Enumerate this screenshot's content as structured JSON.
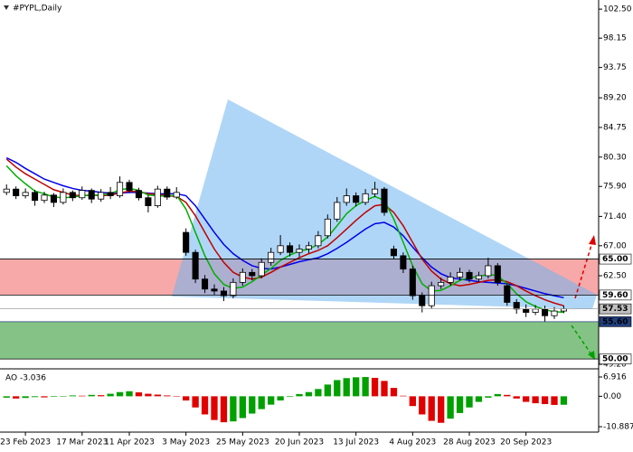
{
  "chart_data": [
    {
      "type": "candlestick",
      "title": "#PYPL,Daily",
      "categories": [
        null,
        null,
        "23 Feb 2023",
        null,
        null,
        null,
        null,
        null,
        "17 Mar 2023",
        null,
        null,
        null,
        null,
        "11 Apr 2023",
        null,
        null,
        null,
        null,
        null,
        "3 May 2023",
        null,
        null,
        null,
        null,
        null,
        "25 May 2023",
        null,
        null,
        null,
        null,
        null,
        "20 Jun 2023",
        null,
        null,
        null,
        null,
        null,
        "13 Jul 2023",
        null,
        null,
        null,
        null,
        null,
        "4 Aug 2023",
        null,
        null,
        null,
        null,
        null,
        "28 Aug 2023",
        null,
        null,
        null,
        null,
        null,
        "20 Sep 2023",
        null,
        null,
        null,
        null
      ],
      "open": [
        75.0,
        75.5,
        74.5,
        75.0,
        73.8,
        74.6,
        73.5,
        75.0,
        74.2,
        75.3,
        74.0,
        75.0,
        74.5,
        76.5,
        75.3,
        74.2,
        73.0,
        75.5,
        74.3,
        69.0,
        66.0,
        62.0,
        60.5,
        60.2,
        59.5,
        61.5,
        63.0,
        62.5,
        64.5,
        66.0,
        67.0,
        66.0,
        66.5,
        67.0,
        68.5,
        71.0,
        73.5,
        74.5,
        73.5,
        74.8,
        75.5,
        66.5,
        65.5,
        63.5,
        59.5,
        58.0,
        61.0,
        61.5,
        62.3,
        63.0,
        62.0,
        62.5,
        64.0,
        61.0,
        58.5,
        57.5,
        57.0,
        57.5,
        56.5,
        57.2
      ],
      "high": [
        76.2,
        75.9,
        75.6,
        75.4,
        75.1,
        74.9,
        75.6,
        75.3,
        75.9,
        75.6,
        75.5,
        75.8,
        77.4,
        76.9,
        75.7,
        74.6,
        76.0,
        75.9,
        75.8,
        69.6,
        66.4,
        62.6,
        61.2,
        60.8,
        62.1,
        63.6,
        63.5,
        65.1,
        66.7,
        68.6,
        67.5,
        67.2,
        67.6,
        69.2,
        71.7,
        74.3,
        75.6,
        75.0,
        75.5,
        76.6,
        75.8,
        67.0,
        66.0,
        64.0,
        60.0,
        61.6,
        62.2,
        63.0,
        63.7,
        63.4,
        63.1,
        65.2,
        64.4,
        61.4,
        59.0,
        58.2,
        58.1,
        58.0,
        57.8,
        58.0
      ],
      "low": [
        74.6,
        74.0,
        74.1,
        73.0,
        73.4,
        72.8,
        73.2,
        73.7,
        73.9,
        73.4,
        73.6,
        74.0,
        74.2,
        74.9,
        73.8,
        72.0,
        72.7,
        73.9,
        74.0,
        65.5,
        61.4,
        59.9,
        59.6,
        58.7,
        59.1,
        61.0,
        61.8,
        62.1,
        64.0,
        65.6,
        65.4,
        65.3,
        65.9,
        66.6,
        68.1,
        70.6,
        73.0,
        72.9,
        73.1,
        74.3,
        71.5,
        65.0,
        62.9,
        58.9,
        57.0,
        57.6,
        60.5,
        61.0,
        61.8,
        61.5,
        61.6,
        62.1,
        61.0,
        58.0,
        56.8,
        56.3,
        56.6,
        55.6,
        56.0,
        56.9
      ],
      "close": [
        75.5,
        74.5,
        75.0,
        73.8,
        74.6,
        73.5,
        75.0,
        74.2,
        75.3,
        74.0,
        75.0,
        74.5,
        76.5,
        75.3,
        74.2,
        73.0,
        75.5,
        74.3,
        75.0,
        66.0,
        62.0,
        60.5,
        60.2,
        59.5,
        61.5,
        63.0,
        62.5,
        64.5,
        66.0,
        67.0,
        66.0,
        66.5,
        67.0,
        68.5,
        71.0,
        73.5,
        74.5,
        73.5,
        74.8,
        75.5,
        72.0,
        65.5,
        63.5,
        59.5,
        58.0,
        61.0,
        61.5,
        62.3,
        63.0,
        62.0,
        62.5,
        64.0,
        61.5,
        58.5,
        57.5,
        57.0,
        57.5,
        56.5,
        57.2,
        57.53
      ],
      "up_color": "#ffffff",
      "down_color": "#000000",
      "lines": [
        {
          "color": "#0000ee",
          "values": [
            80.2,
            79.5,
            78.6,
            77.8,
            77.0,
            76.5,
            76.0,
            75.6,
            75.3,
            75.2,
            75.0,
            74.9,
            74.9,
            75.0,
            75.0,
            74.9,
            74.8,
            74.8,
            74.8,
            74.5,
            73.0,
            71.0,
            69.0,
            67.2,
            65.8,
            64.8,
            64.0,
            63.6,
            63.5,
            63.8,
            64.2,
            64.6,
            64.9,
            65.2,
            65.8,
            66.6,
            67.5,
            68.5,
            69.5,
            70.3,
            70.5,
            69.8,
            68.5,
            66.8,
            65.2,
            63.8,
            62.8,
            62.2,
            62.0,
            61.8,
            61.6,
            61.5,
            61.4,
            61.3,
            61.0,
            60.6,
            60.2,
            59.8,
            59.5,
            59.2
          ]
        },
        {
          "color": "#c00000",
          "values": [
            80.0,
            78.8,
            77.8,
            77.0,
            76.2,
            75.4,
            75.0,
            74.6,
            74.5,
            74.6,
            74.5,
            74.6,
            74.9,
            75.2,
            75.1,
            74.8,
            74.7,
            74.5,
            74.4,
            73.5,
            71.5,
            69.0,
            66.5,
            64.5,
            63.0,
            62.3,
            62.0,
            62.3,
            63.0,
            63.8,
            64.5,
            65.2,
            65.8,
            66.3,
            67.0,
            68.2,
            69.5,
            70.8,
            72.0,
            73.0,
            73.2,
            72.0,
            70.0,
            67.5,
            65.0,
            63.2,
            62.0,
            61.3,
            61.0,
            61.2,
            61.5,
            61.8,
            61.9,
            61.6,
            61.0,
            60.2,
            59.5,
            58.9,
            58.4,
            58.0
          ]
        },
        {
          "color": "#00b000",
          "values": [
            79.0,
            77.5,
            76.3,
            75.2,
            74.8,
            74.3,
            74.2,
            74.3,
            74.5,
            74.6,
            74.6,
            74.8,
            75.4,
            75.6,
            75.3,
            74.6,
            74.5,
            74.4,
            74.6,
            72.5,
            69.0,
            65.5,
            62.8,
            61.2,
            60.6,
            60.8,
            61.6,
            62.6,
            63.6,
            64.8,
            65.6,
            66.2,
            66.5,
            67.2,
            68.3,
            70.0,
            71.8,
            73.0,
            73.8,
            74.4,
            73.8,
            71.0,
            67.5,
            64.0,
            61.3,
            60.2,
            60.3,
            61.0,
            61.8,
            62.2,
            62.4,
            62.7,
            62.5,
            61.3,
            59.8,
            58.6,
            57.9,
            57.4,
            57.1,
            57.0
          ]
        }
      ],
      "ylim": [
        48.8,
        103.6
      ],
      "yticks": [
        {
          "value": 102.5,
          "label": "102.50"
        },
        {
          "value": 98.15,
          "label": "98.15"
        },
        {
          "value": 93.75,
          "label": "93.75"
        },
        {
          "value": 89.2,
          "label": "89.20"
        },
        {
          "value": 84.75,
          "label": "84.75"
        },
        {
          "value": 80.3,
          "label": "80.30"
        },
        {
          "value": 75.9,
          "label": "75.90"
        },
        {
          "value": 71.4,
          "label": "71.40"
        },
        {
          "value": 67,
          "label": "67.00"
        },
        {
          "value": 62.5,
          "label": "62.50"
        },
        {
          "value": 49.2,
          "label": "49.20"
        }
      ],
      "zones": [
        {
          "from": 59.6,
          "to": 65,
          "color": "#f7a8a8"
        },
        {
          "from": 50,
          "to": 55.6,
          "color": "#85c285"
        }
      ],
      "levels": [
        {
          "value": 65,
          "label": "65.00",
          "color": "#000000",
          "tag_fill": "#ffffff",
          "tag_text": "#000000"
        },
        {
          "value": 59.6,
          "label": "59.60",
          "color": "#000000",
          "tag_fill": "#ffffff",
          "tag_text": "#000000"
        },
        {
          "value": 57.53,
          "label": "57.53",
          "color": "#a0a0a0",
          "tag_fill": "#c0c0c0",
          "tag_text": "#000000"
        },
        {
          "value": 55.6,
          "label": "55.60",
          "color": "#1f3f7f",
          "tag_fill": "#1f3f7f",
          "tag_text": "#ffffff"
        },
        {
          "value": 50,
          "label": "50.00",
          "color": "#000000",
          "tag_fill": "#ffffff",
          "tag_text": "#000000"
        }
      ]
    },
    {
      "type": "histogram-oscillator",
      "title": "AO -3.036",
      "values": [
        -0.5,
        -0.8,
        -0.6,
        -0.3,
        -0.4,
        -0.2,
        0.1,
        0.3,
        0.2,
        0.5,
        0.4,
        0.9,
        1.5,
        1.8,
        1.4,
        0.9,
        0.6,
        0.3,
        0.1,
        -1.5,
        -4.0,
        -6.5,
        -8.5,
        -9.3,
        -9.0,
        -7.8,
        -6.2,
        -4.6,
        -3.0,
        -1.5,
        -0.2,
        0.8,
        1.5,
        2.6,
        4.2,
        5.8,
        6.5,
        6.8,
        6.9,
        6.6,
        5.5,
        3.0,
        0.2,
        -3.5,
        -6.5,
        -8.8,
        -9.5,
        -8.0,
        -6.0,
        -4.0,
        -2.0,
        -0.5,
        0.8,
        0.5,
        -0.8,
        -2.0,
        -2.5,
        -2.8,
        -3.1,
        -3.036
      ],
      "up_color": "#00a000",
      "down_color": "#e00000",
      "ylim": [
        -12.83,
        9.18
      ],
      "yticks": [
        6.916,
        {
          "value": 0,
          "label": "0.00"
        },
        -10.887
      ]
    }
  ]
}
